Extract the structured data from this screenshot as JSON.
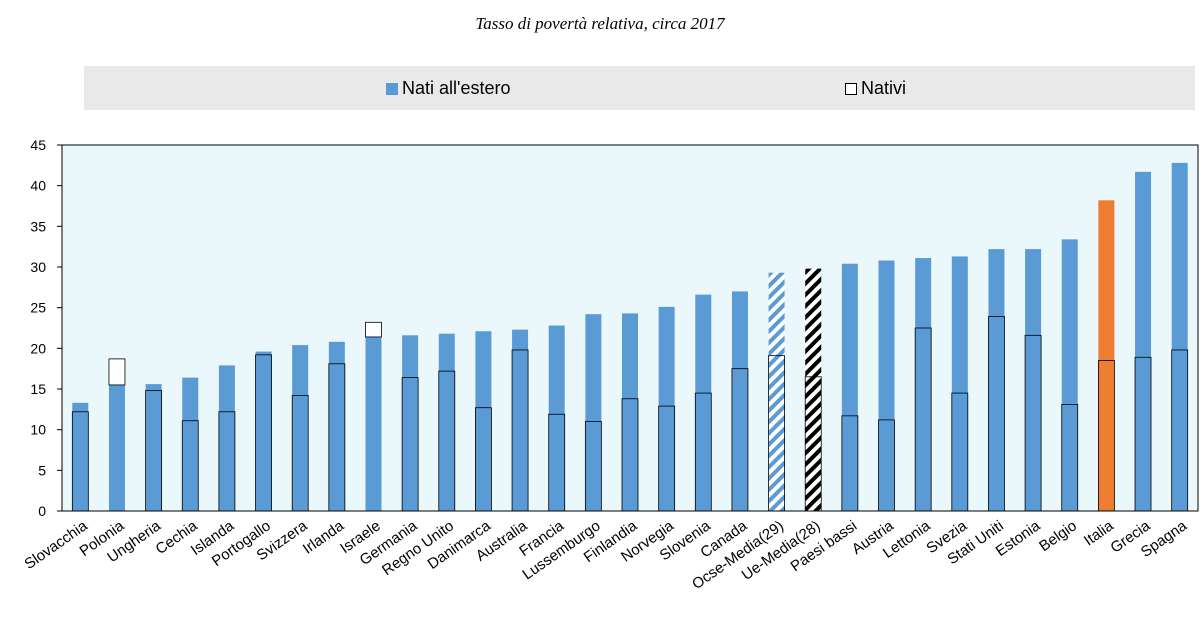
{
  "title": "Tasso di povertà relativa, circa 2017",
  "legend": {
    "foreign_label": "Nati all'estero",
    "native_label": "Nativi"
  },
  "colors": {
    "foreign": "#5b9bd5",
    "italy": "#ed7d31",
    "plot_bg": "#eaf8fc",
    "legend_bg": "#e9e9e9",
    "ue_hatch": "#000000"
  },
  "chart_data": {
    "type": "bar",
    "title": "Tasso di povertà relativa, circa 2017",
    "xlabel": "",
    "ylabel": "",
    "ylim": [
      0,
      45
    ],
    "yticks": [
      0,
      5,
      10,
      15,
      20,
      25,
      30,
      35,
      40,
      45
    ],
    "grid": false,
    "legend_position": "top",
    "categories": [
      "Slovacchia",
      "Polonia",
      "Ungheria",
      "Cechia",
      "Islanda",
      "Portogallo",
      "Svizzera",
      "Irlanda",
      "Israele",
      "Germania",
      "Regno Unito",
      "Danimarca",
      "Australia",
      "Francia",
      "Lussemburgo",
      "Finlandia",
      "Norvegia",
      "Slovenia",
      "Canada",
      "Ocse-Media(29)",
      "Ue-Media(28)",
      "Paesi bassi",
      "Austria",
      "Lettonia",
      "Svezia",
      "Stati Uniti",
      "Estonia",
      "Belgio",
      "Italia",
      "Grecia",
      "Spagna"
    ],
    "series": [
      {
        "name": "Nati all'estero",
        "values": [
          13.3,
          15.5,
          15.6,
          16.4,
          17.9,
          19.6,
          20.4,
          20.8,
          21.4,
          21.6,
          21.8,
          22.1,
          22.3,
          22.8,
          24.2,
          24.3,
          25.1,
          26.6,
          27.0,
          29.3,
          29.8,
          30.4,
          30.8,
          31.1,
          31.3,
          32.2,
          32.2,
          33.4,
          38.2,
          41.7,
          42.8
        ]
      },
      {
        "name": "Nativi",
        "values": [
          12.2,
          18.7,
          14.8,
          11.1,
          12.2,
          19.2,
          14.2,
          18.1,
          23.2,
          16.4,
          17.2,
          12.7,
          19.8,
          11.9,
          11.0,
          13.8,
          12.9,
          14.5,
          17.5,
          19.1,
          16.5,
          11.7,
          11.2,
          22.5,
          14.5,
          23.9,
          21.6,
          13.1,
          18.5,
          18.9,
          19.8
        ]
      }
    ]
  }
}
